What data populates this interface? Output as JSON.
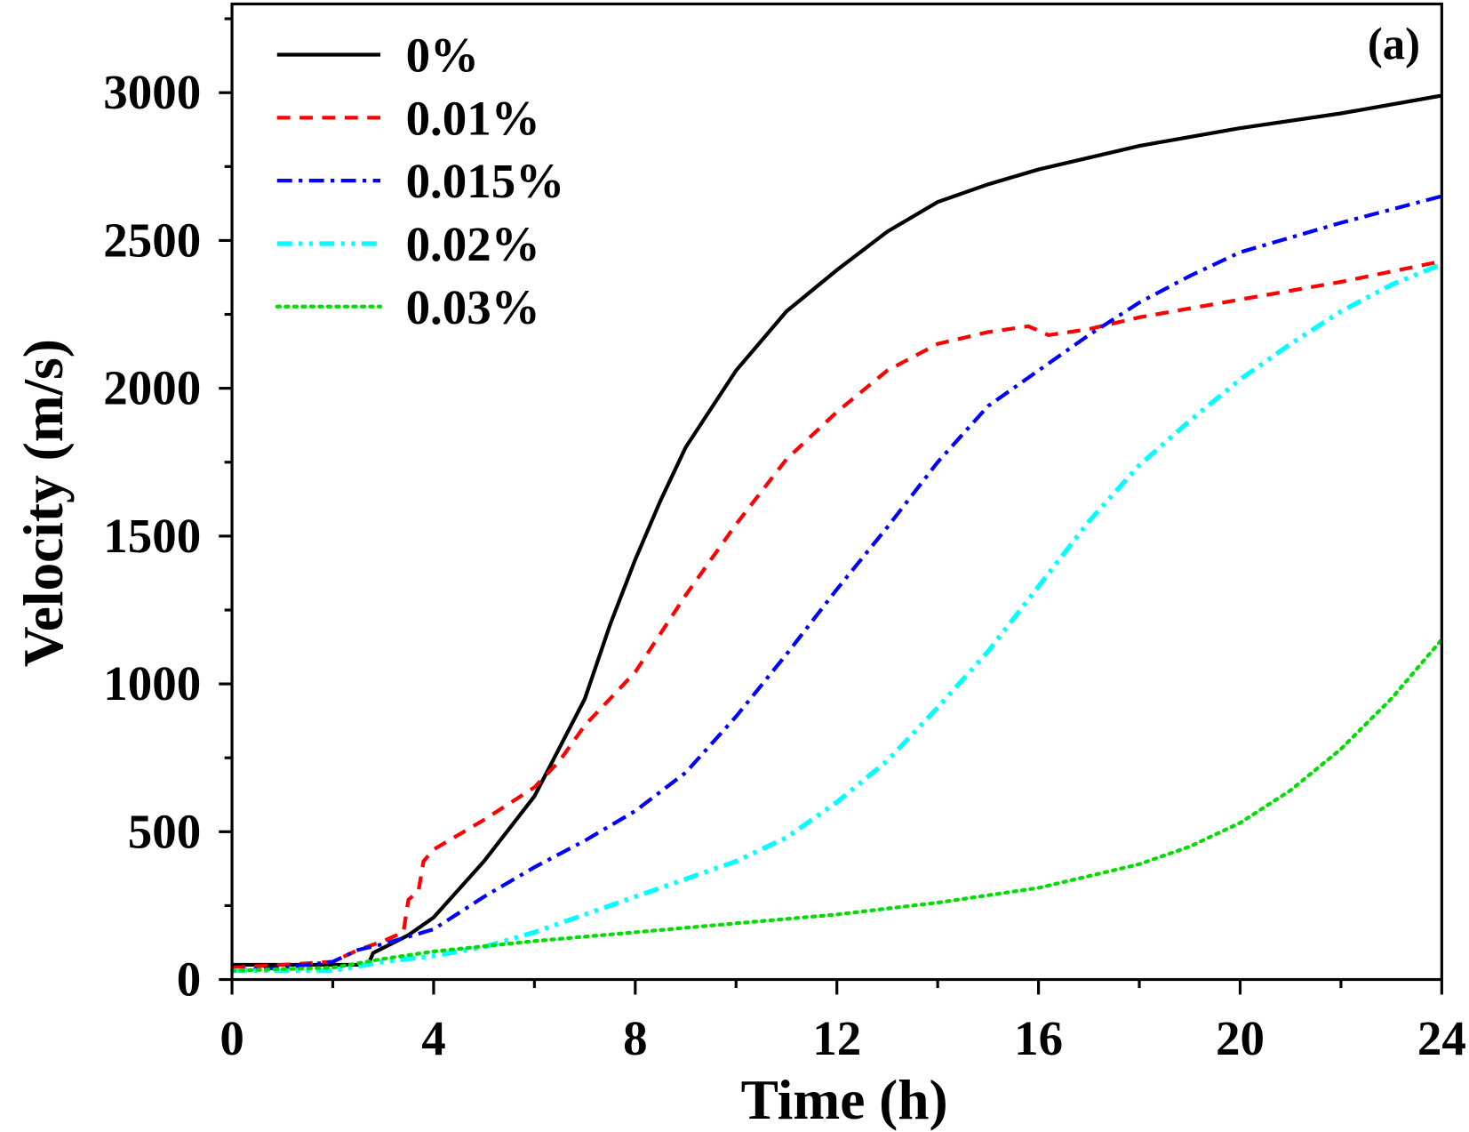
{
  "chart_data": {
    "type": "line",
    "title": "",
    "annotation": "(a)",
    "xlabel": "Time (h)",
    "ylabel": "Velocity (m/s)",
    "xlim": [
      0,
      24
    ],
    "ylim": [
      0,
      3300
    ],
    "xticks": [
      0,
      4,
      8,
      12,
      16,
      20,
      24
    ],
    "yticks": [
      0,
      500,
      1000,
      1500,
      2000,
      2500,
      3000
    ],
    "grid": false,
    "legend_position": "top-left",
    "series": [
      {
        "name": "0%",
        "color": "#000000",
        "style": "solid",
        "x": [
          0,
          2.7,
          2.8,
          3.5,
          4,
          5,
          6,
          7,
          7.5,
          8,
          8.5,
          9,
          9.5,
          10,
          11,
          12,
          13,
          14,
          15,
          16,
          18,
          20,
          22,
          24
        ],
        "y": [
          50,
          50,
          90,
          150,
          210,
          400,
          620,
          950,
          1200,
          1420,
          1620,
          1800,
          1930,
          2060,
          2260,
          2400,
          2530,
          2630,
          2690,
          2740,
          2820,
          2880,
          2930,
          2990
        ]
      },
      {
        "name": "0.01%",
        "color": "#ff0000",
        "style": "dash",
        "x": [
          0,
          1,
          2,
          2.5,
          3,
          3.4,
          3.5,
          3.7,
          3.8,
          4,
          5,
          6,
          6.5,
          7,
          8,
          9,
          10,
          11,
          12,
          13,
          14,
          15,
          15.8,
          16.2,
          17,
          18,
          20,
          22,
          24
        ],
        "y": [
          40,
          50,
          60,
          100,
          130,
          160,
          270,
          300,
          400,
          440,
          540,
          650,
          740,
          860,
          1040,
          1300,
          1540,
          1760,
          1920,
          2060,
          2150,
          2190,
          2210,
          2180,
          2200,
          2240,
          2300,
          2360,
          2430
        ]
      },
      {
        "name": "0.015%",
        "color": "#0000ff",
        "style": "dashdot",
        "x": [
          0,
          1,
          2,
          2.5,
          3,
          4,
          5,
          6,
          7,
          8,
          9,
          10,
          11,
          12,
          13,
          14,
          15,
          16,
          17,
          18,
          19,
          20,
          22,
          24
        ],
        "y": [
          30,
          40,
          60,
          100,
          120,
          170,
          280,
          380,
          470,
          570,
          700,
          890,
          1100,
          1320,
          1530,
          1750,
          1940,
          2060,
          2180,
          2290,
          2380,
          2460,
          2560,
          2650
        ]
      },
      {
        "name": "0.02%",
        "color": "#00ffff",
        "style": "dashdotdot",
        "x": [
          0,
          2,
          3,
          4,
          5,
          6,
          7,
          8,
          9,
          10,
          11,
          12,
          13,
          14,
          15,
          16,
          17,
          18,
          19,
          20,
          21,
          22,
          23,
          24
        ],
        "y": [
          30,
          30,
          60,
          80,
          110,
          160,
          220,
          280,
          340,
          400,
          480,
          600,
          740,
          920,
          1110,
          1330,
          1550,
          1740,
          1890,
          2030,
          2150,
          2260,
          2350,
          2420
        ]
      },
      {
        "name": "0.03%",
        "color": "#00dd00",
        "style": "dot",
        "x": [
          0,
          2,
          3,
          4,
          6,
          8,
          10,
          12,
          14,
          16,
          18,
          19,
          20,
          21,
          22,
          23,
          24
        ],
        "y": [
          30,
          40,
          70,
          95,
          130,
          160,
          190,
          220,
          260,
          310,
          390,
          450,
          530,
          640,
          780,
          950,
          1150
        ]
      }
    ]
  }
}
